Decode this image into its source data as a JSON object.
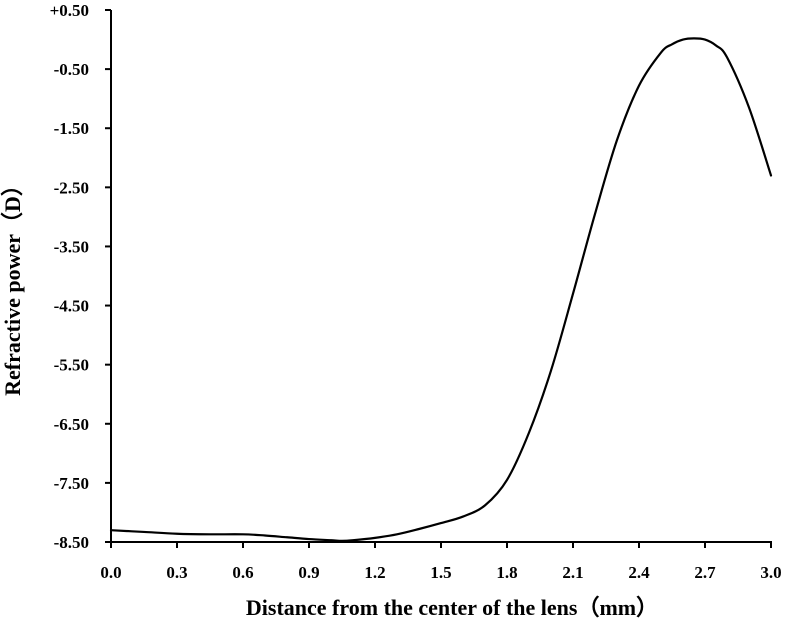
{
  "chart_data": {
    "type": "line",
    "title": "",
    "xlabel": "Distance from the center of the lens（mm）",
    "ylabel": "Refractive power（D）",
    "xlim": [
      0.0,
      3.0
    ],
    "ylim": [
      -8.5,
      0.5
    ],
    "x_ticks": [
      "0.0",
      "0.3",
      "0.6",
      "0.9",
      "1.2",
      "1.5",
      "1.8",
      "2.1",
      "2.4",
      "2.7",
      "3.0"
    ],
    "y_ticks": [
      "+0.50",
      "-0.50",
      "-1.50",
      "-2.50",
      "-3.50",
      "-4.50",
      "-5.50",
      "-6.50",
      "-7.50",
      "-8.50"
    ],
    "grid": false,
    "legend": "none",
    "line_color": "#000000",
    "series": [
      {
        "x": [
          0.0,
          0.15,
          0.3,
          0.45,
          0.6,
          0.7,
          0.8,
          0.9,
          1.0,
          1.05,
          1.1,
          1.2,
          1.3,
          1.4,
          1.5,
          1.6,
          1.7,
          1.8,
          1.9,
          2.0,
          2.1,
          2.2,
          2.3,
          2.4,
          2.5,
          2.55,
          2.6,
          2.65,
          2.7,
          2.75,
          2.8,
          2.9,
          3.0
        ],
        "y": [
          -8.3,
          -8.33,
          -8.36,
          -8.37,
          -8.37,
          -8.39,
          -8.42,
          -8.45,
          -8.47,
          -8.48,
          -8.47,
          -8.43,
          -8.37,
          -8.28,
          -8.18,
          -8.07,
          -7.88,
          -7.45,
          -6.65,
          -5.6,
          -4.3,
          -2.95,
          -1.7,
          -0.78,
          -0.22,
          -0.08,
          0.0,
          0.02,
          0.0,
          -0.1,
          -0.3,
          -1.15,
          -2.3
        ]
      }
    ]
  }
}
